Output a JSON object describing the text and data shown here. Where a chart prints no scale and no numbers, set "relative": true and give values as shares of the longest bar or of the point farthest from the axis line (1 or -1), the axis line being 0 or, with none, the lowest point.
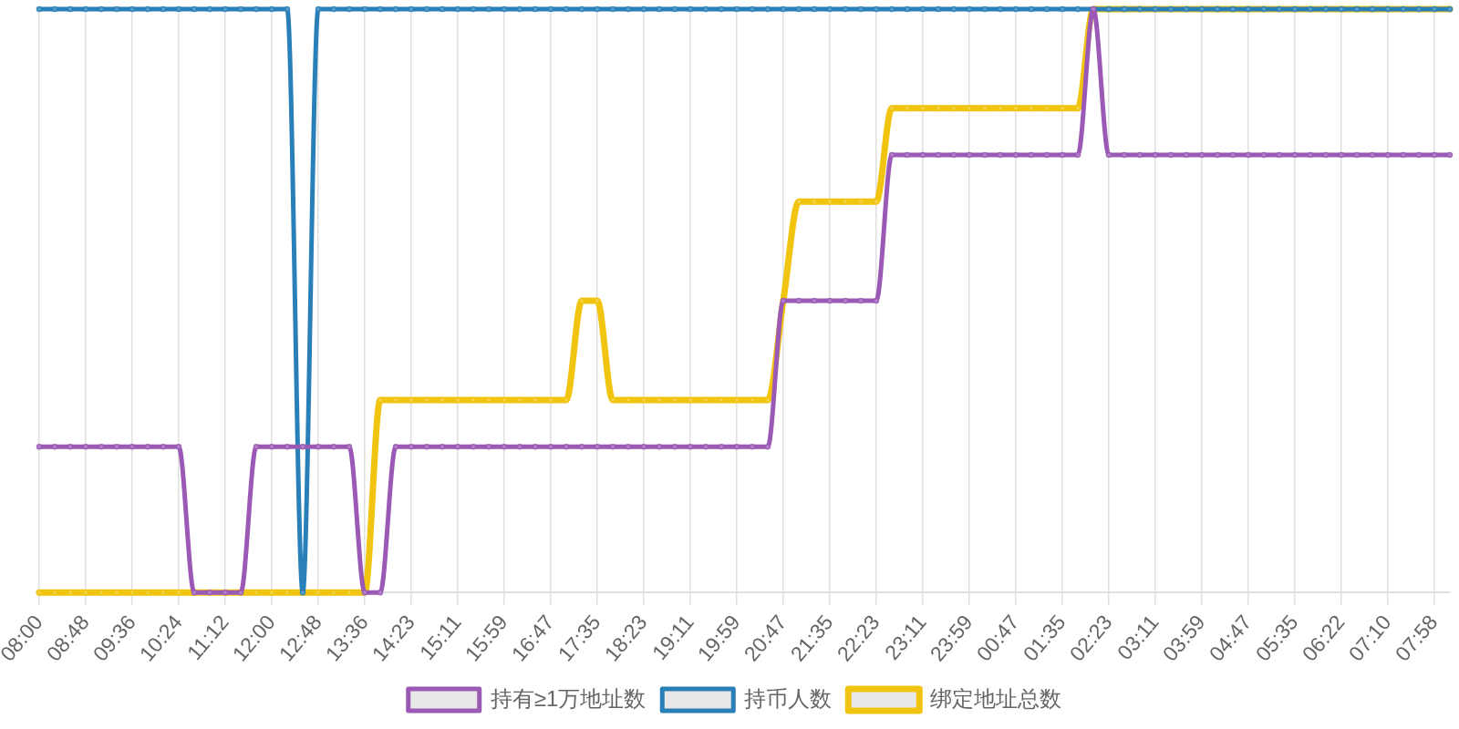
{
  "chart_data": {
    "type": "line",
    "relative": true,
    "grid": "x",
    "legend": "bottom",
    "marker": "circle",
    "categories": [
      "08:00",
      null,
      null,
      "08:48",
      null,
      null,
      "09:36",
      null,
      null,
      "10:24",
      null,
      null,
      "11:12",
      null,
      null,
      "12:00",
      null,
      null,
      "12:48",
      null,
      null,
      "13:36",
      null,
      null,
      "14:23",
      null,
      null,
      "15:11",
      null,
      null,
      "15:59",
      null,
      null,
      "16:47",
      null,
      null,
      "17:35",
      null,
      null,
      "18:23",
      null,
      null,
      "19:11",
      null,
      null,
      "19:59",
      null,
      null,
      "20:47",
      null,
      null,
      "21:35",
      null,
      null,
      "22:23",
      null,
      null,
      "23:11",
      null,
      null,
      "23:59",
      null,
      null,
      "00:47",
      null,
      null,
      "01:35",
      null,
      null,
      "02:23",
      null,
      null,
      "03:11",
      null,
      null,
      "03:59",
      null,
      null,
      "04:47",
      null,
      null,
      "05:35",
      null,
      null,
      "06:22",
      null,
      null,
      "07:10",
      null,
      null,
      "07:58",
      null
    ],
    "series": [
      {
        "name": "持有≥1万地址数",
        "color": "#9b59b6",
        "values": [
          0.25,
          0.25,
          0.25,
          0.25,
          0.25,
          0.25,
          0.25,
          0.25,
          0.25,
          0.25,
          0,
          0,
          0,
          0,
          0.25,
          0.25,
          0.25,
          0.25,
          0.25,
          0.25,
          0.25,
          0,
          0,
          0.25,
          0.25,
          0.25,
          0.25,
          0.25,
          0.25,
          0.25,
          0.25,
          0.25,
          0.25,
          0.25,
          0.25,
          0.25,
          0.25,
          0.25,
          0.25,
          0.25,
          0.25,
          0.25,
          0.25,
          0.25,
          0.25,
          0.25,
          0.25,
          0.25,
          0.5,
          0.5,
          0.5,
          0.5,
          0.5,
          0.5,
          0.5,
          0.75,
          0.75,
          0.75,
          0.75,
          0.75,
          0.75,
          0.75,
          0.75,
          0.75,
          0.75,
          0.75,
          0.75,
          0.75,
          1,
          0.75,
          0.75,
          0.75,
          0.75,
          0.75,
          0.75,
          0.75,
          0.75,
          0.75,
          0.75,
          0.75,
          0.75,
          0.75,
          0.75,
          0.75,
          0.75,
          0.75,
          0.75,
          0.75,
          0.75,
          0.75,
          0.75,
          0.75
        ]
      },
      {
        "name": "持币人数",
        "color": "#2980b9",
        "values": [
          1,
          1,
          1,
          1,
          1,
          1,
          1,
          1,
          1,
          1,
          1,
          1,
          1,
          1,
          1,
          1,
          1,
          0,
          1,
          1,
          1,
          1,
          1,
          1,
          1,
          1,
          1,
          1,
          1,
          1,
          1,
          1,
          1,
          1,
          1,
          1,
          1,
          1,
          1,
          1,
          1,
          1,
          1,
          1,
          1,
          1,
          1,
          1,
          1,
          1,
          1,
          1,
          1,
          1,
          1,
          1,
          1,
          1,
          1,
          1,
          1,
          1,
          1,
          1,
          1,
          1,
          1,
          1,
          1,
          1,
          1,
          1,
          1,
          1,
          1,
          1,
          1,
          1,
          1,
          1,
          1,
          1,
          1,
          1,
          1,
          1,
          1,
          1,
          1,
          1,
          1,
          1
        ]
      },
      {
        "name": "绑定地址总数",
        "color": "#f1c40f",
        "values": [
          0,
          0,
          0,
          0,
          0,
          0,
          0,
          0,
          0,
          0,
          0,
          0,
          0,
          0,
          0,
          0,
          0,
          0,
          0,
          0,
          0,
          0,
          0.33,
          0.33,
          0.33,
          0.33,
          0.33,
          0.33,
          0.33,
          0.33,
          0.33,
          0.33,
          0.33,
          0.33,
          0.33,
          0.5,
          0.5,
          0.33,
          0.33,
          0.33,
          0.33,
          0.33,
          0.33,
          0.33,
          0.33,
          0.33,
          0.33,
          0.33,
          0.5,
          0.67,
          0.67,
          0.67,
          0.67,
          0.67,
          0.67,
          0.83,
          0.83,
          0.83,
          0.83,
          0.83,
          0.83,
          0.83,
          0.83,
          0.83,
          0.83,
          0.83,
          0.83,
          0.83,
          1,
          1,
          1,
          1,
          1,
          1,
          1,
          1,
          1,
          1,
          1,
          1,
          1,
          1,
          1,
          1,
          1,
          1,
          1,
          1,
          1,
          1,
          1,
          1
        ]
      }
    ]
  }
}
